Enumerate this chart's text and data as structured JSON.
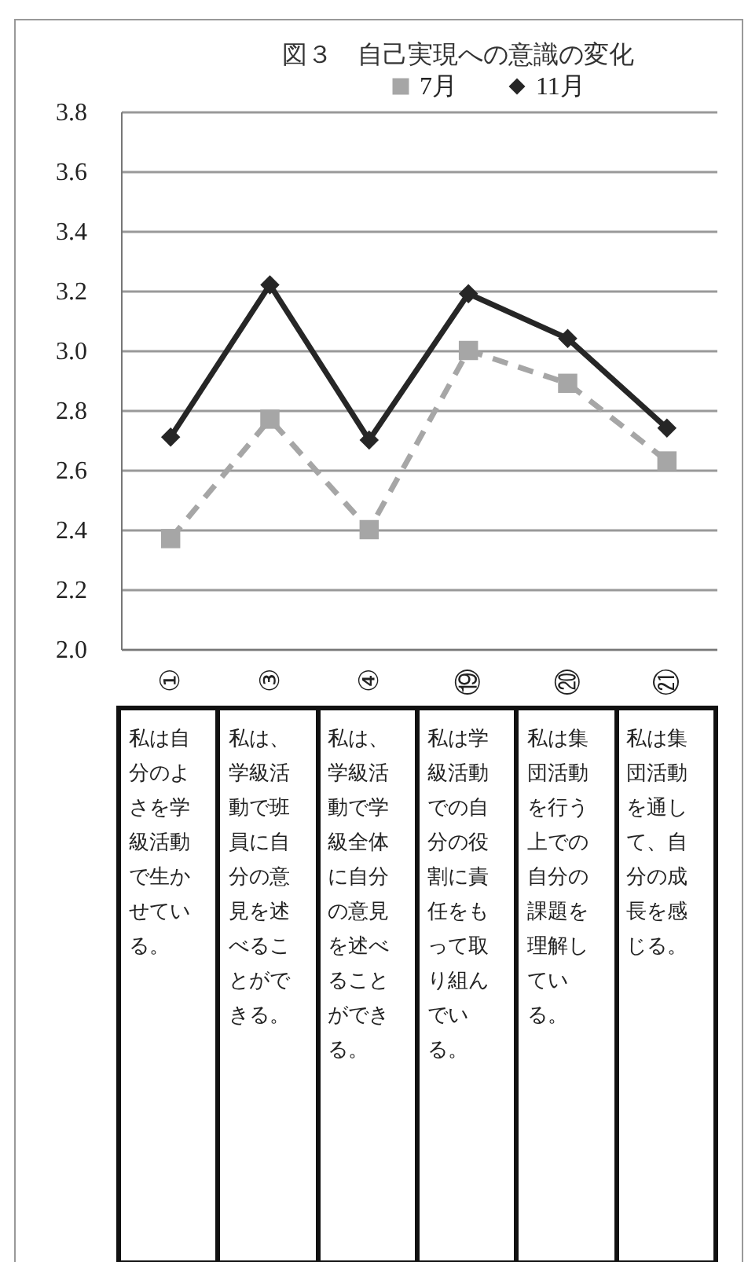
{
  "chart_data": {
    "type": "line",
    "title": "図３　自己実現への意識の変化",
    "categories": [
      "①",
      "③",
      "④",
      "⑲",
      "⑳",
      "㉑"
    ],
    "series": [
      {
        "name": "7月",
        "color": "#a6a6a6",
        "marker": "square",
        "line_style": "dashed",
        "values": [
          2.37,
          2.77,
          2.4,
          3.0,
          2.89,
          2.63
        ]
      },
      {
        "name": "11月",
        "color": "#262626",
        "marker": "diamond",
        "line_style": "solid",
        "values": [
          2.71,
          3.22,
          2.7,
          3.19,
          3.04,
          2.74
        ]
      }
    ],
    "ylim": [
      2.0,
      3.8
    ],
    "yticks": [
      {
        "value": 2,
        "label": "2.0"
      },
      2.2,
      2.4,
      2.6,
      2.8,
      {
        "value": 3,
        "label": "3.0"
      },
      3.2,
      3.4,
      3.6,
      3.8
    ],
    "grid": "y",
    "legend": "top right",
    "annotations": [
      "私は自分のよさを学級活動で生かせている。",
      "私は、学級活動で班員に自分の意見を述べることができる。",
      "私は、学級活動で学級全体に自分の意見を述べることができる。",
      "私は学級活動での自分の役割に責任をもって取り組んでいる。",
      "私は集団活動を行う上での自分の課題を理解している。",
      "私は集団活動を通して、自分の成長を感じる。"
    ]
  }
}
